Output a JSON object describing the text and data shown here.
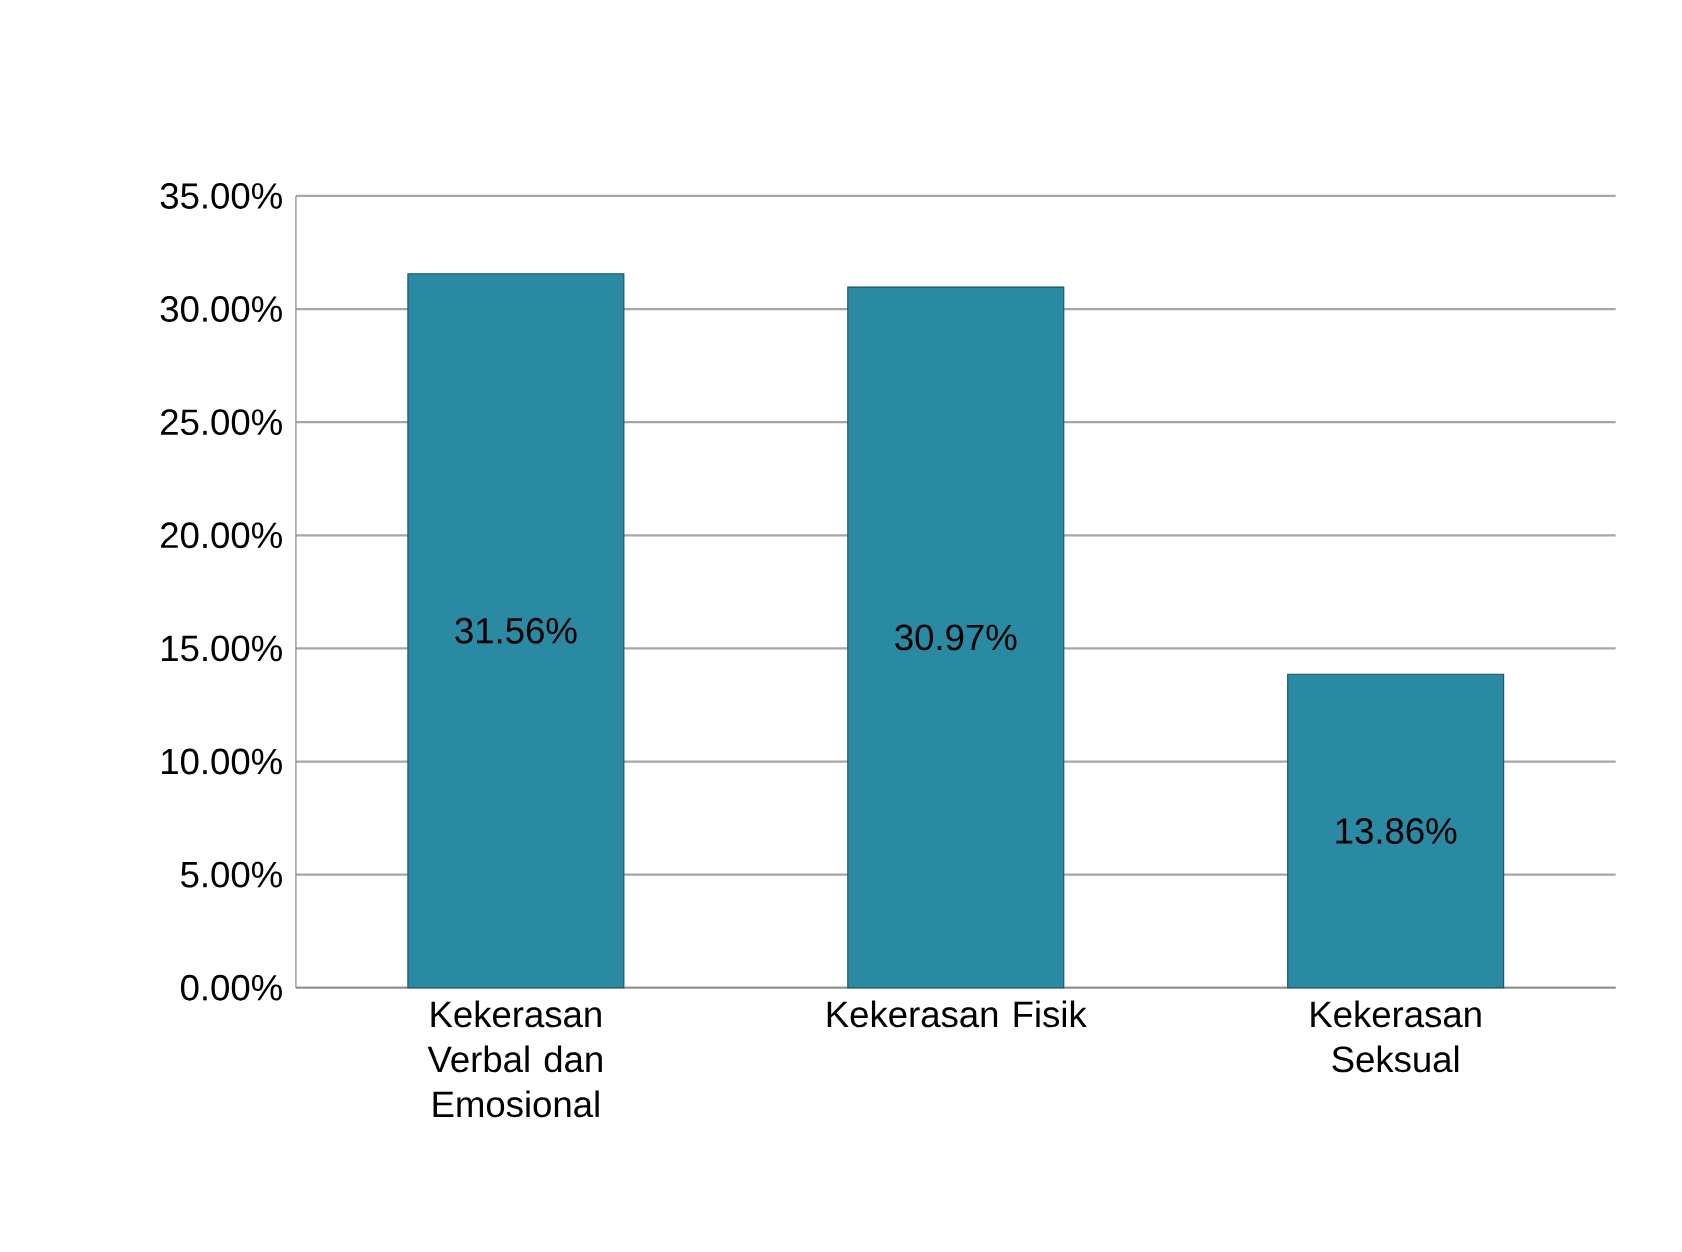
{
  "chart_data": {
    "type": "bar",
    "categories": [
      "Kekerasan Verbal dan Emosional",
      "Kekerasan Fisik",
      "Kekerasan Seksual"
    ],
    "values": [
      31.56,
      30.97,
      13.86
    ],
    "value_labels": [
      "31.56%",
      "30.97%",
      "13.86%"
    ],
    "color": "#2a8aa3",
    "ylim": [
      0,
      35
    ],
    "yticks": [
      {
        "value": 0,
        "label": "0.00%"
      },
      {
        "value": 5,
        "label": "5.00%"
      },
      {
        "value": 10,
        "label": "10.00%"
      },
      {
        "value": 15,
        "label": "15.00%"
      },
      {
        "value": 20,
        "label": "20.00%"
      },
      {
        "value": 25,
        "label": "25.00%"
      },
      {
        "value": 30,
        "label": "30.00%"
      },
      {
        "value": 35,
        "label": "35.00%"
      }
    ],
    "grid": "y"
  }
}
